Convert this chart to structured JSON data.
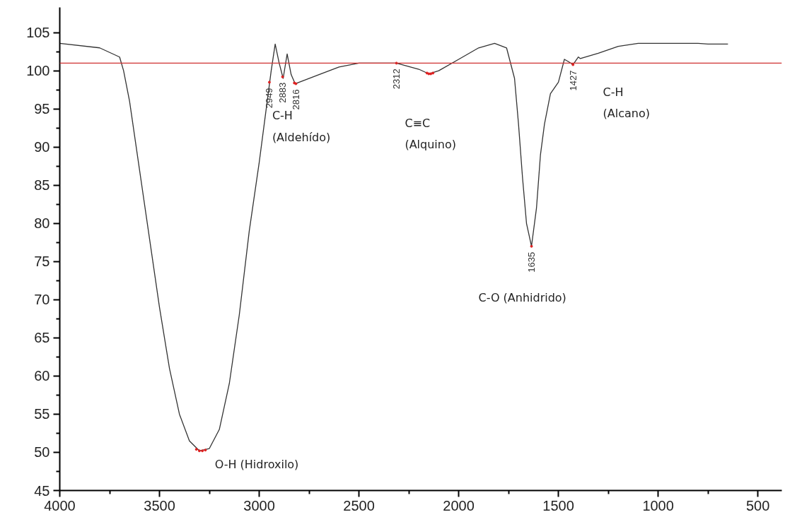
{
  "chart_data": {
    "type": "line",
    "x": [
      4000,
      3800,
      3700,
      3680,
      3650,
      3600,
      3550,
      3500,
      3450,
      3400,
      3350,
      3300,
      3250,
      3200,
      3150,
      3100,
      3050,
      3000,
      2960,
      2940,
      2920,
      2900,
      2880,
      2860,
      2840,
      2820,
      2700,
      2600,
      2500,
      2312,
      2200,
      2150,
      2100,
      2000,
      1900,
      1820,
      1760,
      1720,
      1700,
      1680,
      1660,
      1635,
      1610,
      1590,
      1570,
      1540,
      1500,
      1470,
      1450,
      1427,
      1400,
      1390,
      1300,
      1200,
      1100,
      800,
      750,
      650
    ],
    "series": [
      {
        "color": "#333333",
        "values": [
          103.6,
          103.0,
          101.8,
          100,
          96,
          87,
          78,
          69,
          61,
          55,
          51.5,
          50.2,
          50.5,
          53,
          59,
          68,
          79,
          88,
          96,
          100,
          103.5,
          101,
          99,
          102.2,
          99.5,
          98.3,
          99.5,
          100.5,
          101,
          101,
          100.2,
          99.6,
          100,
          101.5,
          103,
          103.6,
          103,
          99,
          93,
          86,
          80,
          77,
          82,
          89,
          93,
          97,
          98.5,
          101.5,
          101.2,
          100.8,
          101.8,
          101.6,
          102.3,
          103.2,
          103.6,
          103.6,
          103.5,
          103.5
        ]
      },
      {
        "type": "scatter",
        "color": "#e02020",
        "x": [
          3315,
          3300,
          3285,
          3270,
          2949,
          2883,
          2824,
          2816,
          2312,
          2159,
          2150,
          2140,
          2129,
          1635,
          1427
        ],
        "values": [
          50.4,
          50.2,
          50.2,
          50.3,
          98.5,
          99.2,
          98.4,
          98.3,
          101,
          99.7,
          99.6,
          99.6,
          99.7,
          77,
          100.8
        ]
      }
    ],
    "xlim": [
      4000,
      380
    ],
    "ylim": [
      45,
      108.3
    ],
    "xticks": [
      4000,
      3500,
      3000,
      2500,
      2000,
      1500,
      1000,
      500
    ],
    "yticks": [
      45,
      50,
      55,
      60,
      65,
      70,
      75,
      80,
      85,
      90,
      95,
      100,
      105
    ],
    "grid": false,
    "line_style": "solid",
    "ref_lines": [
      {
        "axis": "y",
        "value": 101,
        "color": "#d03030"
      }
    ],
    "annotations": [
      "C-H\n(Aldehído)",
      "C≡C\n(Alquino)",
      "C-H\n(Alcano)",
      "O-H (Hidroxilo)",
      "C-O (Anhidrido)",
      {
        "text": "2949",
        "x": 2949,
        "y": 98.5
      },
      {
        "text": "2883",
        "x": 2883,
        "y": 99.2
      },
      {
        "text": "2816",
        "x": 2816,
        "y": 98.3
      },
      {
        "text": "2312",
        "x": 2312,
        "y": 101
      },
      {
        "text": "1635",
        "x": 1635,
        "y": 77
      },
      {
        "text": "1427",
        "x": 1427,
        "y": 100.8
      }
    ]
  }
}
